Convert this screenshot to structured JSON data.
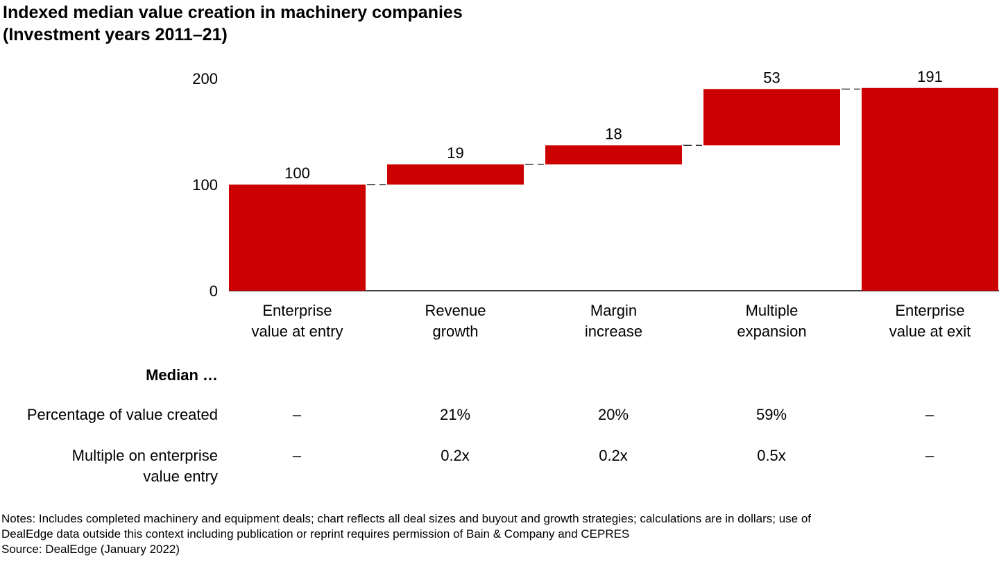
{
  "title_line1": "Indexed median value creation in machinery companies",
  "title_line2": "(Investment years 2011–21)",
  "chart_data": {
    "type": "waterfall",
    "bar_color": "#cc0000",
    "ylim": [
      0,
      200
    ],
    "yticks": [
      0,
      100,
      200
    ],
    "categories": [
      [
        "Enterprise",
        "value at entry"
      ],
      [
        "Revenue",
        "growth"
      ],
      [
        "Margin",
        "increase"
      ],
      [
        "Multiple",
        "expansion"
      ],
      [
        "Enterprise",
        "value at exit"
      ]
    ],
    "values": [
      100,
      19,
      18,
      53,
      191
    ],
    "data_labels": [
      "100",
      "19",
      "18",
      "53",
      "191"
    ],
    "kinds": [
      "total",
      "delta",
      "delta",
      "delta",
      "total"
    ]
  },
  "table": {
    "header": "Median …",
    "rows": [
      {
        "label": [
          "Percentage of value created"
        ],
        "cells": [
          "–",
          "21%",
          "20%",
          "59%",
          "–"
        ]
      },
      {
        "label": [
          "Multiple on enterprise",
          "value entry"
        ],
        "cells": [
          "–",
          "0.2x",
          "0.2x",
          "0.5x",
          "–"
        ]
      }
    ]
  },
  "notes": [
    "Notes: Includes completed machinery and equipment deals; chart reflects all deal sizes and buyout and growth strategies; calculations are in dollars; use of",
    "DealEdge data outside this context including publication or reprint requires permission of Bain & Company and CEPRES",
    "Source: DealEdge (January 2022)"
  ]
}
